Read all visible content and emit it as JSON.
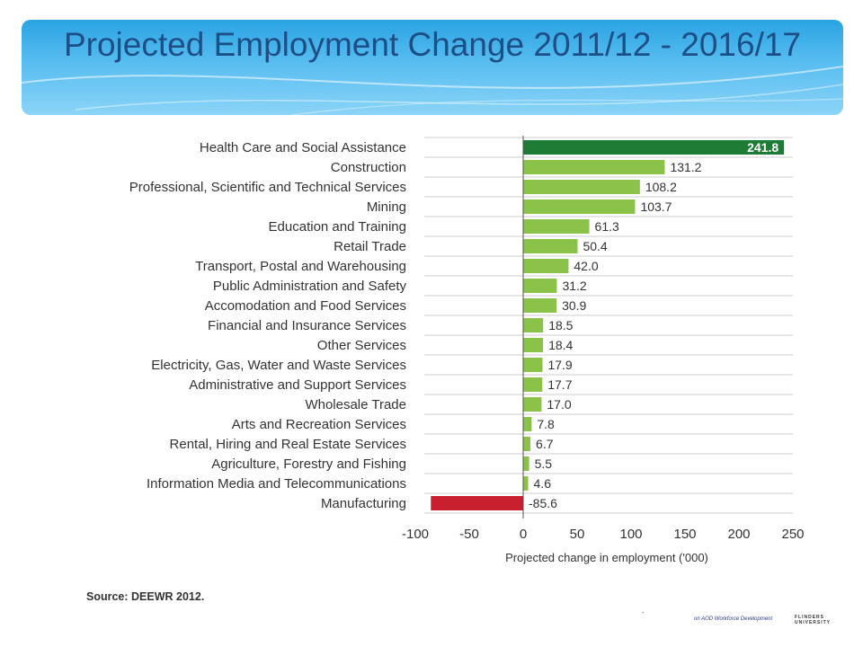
{
  "slide": {
    "title": "Projected Employment Change 2011/12 - 2016/17",
    "source": "Source: DEEWR 2012.",
    "footer_tick": "`",
    "footer_logo_left": "on AOD Workforce Development",
    "footer_logo_right": "FLINDERS UNIVERSITY"
  },
  "colors": {
    "header_top": "#2aa3e2",
    "title_text": "#1d4f86",
    "bar_positive": "#8bc34a",
    "bar_highlight": "#1e7b35",
    "bar_negative": "#c8202e"
  },
  "chart_data": {
    "type": "bar",
    "orientation": "horizontal",
    "title": "",
    "xlabel": "Projected change in employment ('000)",
    "ylabel": "",
    "xlim": [
      -100,
      250
    ],
    "xticks": [
      -100,
      -50,
      0,
      50,
      100,
      150,
      200,
      250
    ],
    "grid": "horizontal rows",
    "categories": [
      "Health Care and Social Assistance",
      "Construction",
      "Professional, Scientific and Technical Services",
      "Mining",
      "Education and Training",
      "Retail Trade",
      "Transport, Postal and Warehousing",
      "Public Administration and Safety",
      "Accomodation and Food Services",
      "Financial and Insurance Services",
      "Other Services",
      "Electricity, Gas, Water and Waste Services",
      "Administrative and Support Services",
      "Wholesale Trade",
      "Arts and Recreation Services",
      "Rental, Hiring and Real Estate Services",
      "Agriculture, Forestry and Fishing",
      "Information Media and Telecommunications",
      "Manufacturing"
    ],
    "values": [
      241.8,
      131.2,
      108.2,
      103.7,
      61.3,
      50.4,
      42.0,
      31.2,
      30.9,
      18.5,
      18.4,
      17.9,
      17.7,
      17.0,
      7.8,
      6.7,
      5.5,
      4.6,
      -85.6
    ],
    "value_labels": [
      "241.8",
      "131.2",
      "108.2",
      "103.7",
      "61.3",
      "50.4",
      "42.0",
      "31.2",
      "30.9",
      "18.5",
      "18.4",
      "17.9",
      "17.7",
      "17.0",
      "7.8",
      "6.7",
      "5.5",
      "4.6",
      "-85.6"
    ]
  }
}
